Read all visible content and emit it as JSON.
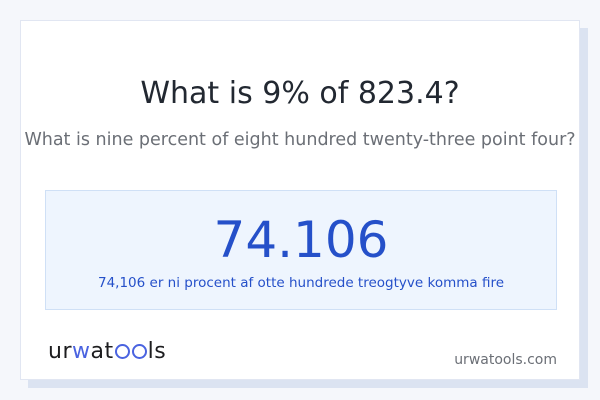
{
  "question": {
    "title": "What is 9% of 823.4?",
    "subtitle": "What is nine percent of eight hundred twenty-three point four?"
  },
  "result": {
    "value": "74.106",
    "words": "74,106 er ni procent af otte hundrede treogtyve komma fire"
  },
  "footer": {
    "logo_text": "urwatools",
    "site": "urwatools.com"
  },
  "colors": {
    "accent": "#2550c9",
    "logo_accent": "#4a63e0",
    "result_bg": "#eef5fe",
    "page_bg": "#f5f7fb"
  }
}
